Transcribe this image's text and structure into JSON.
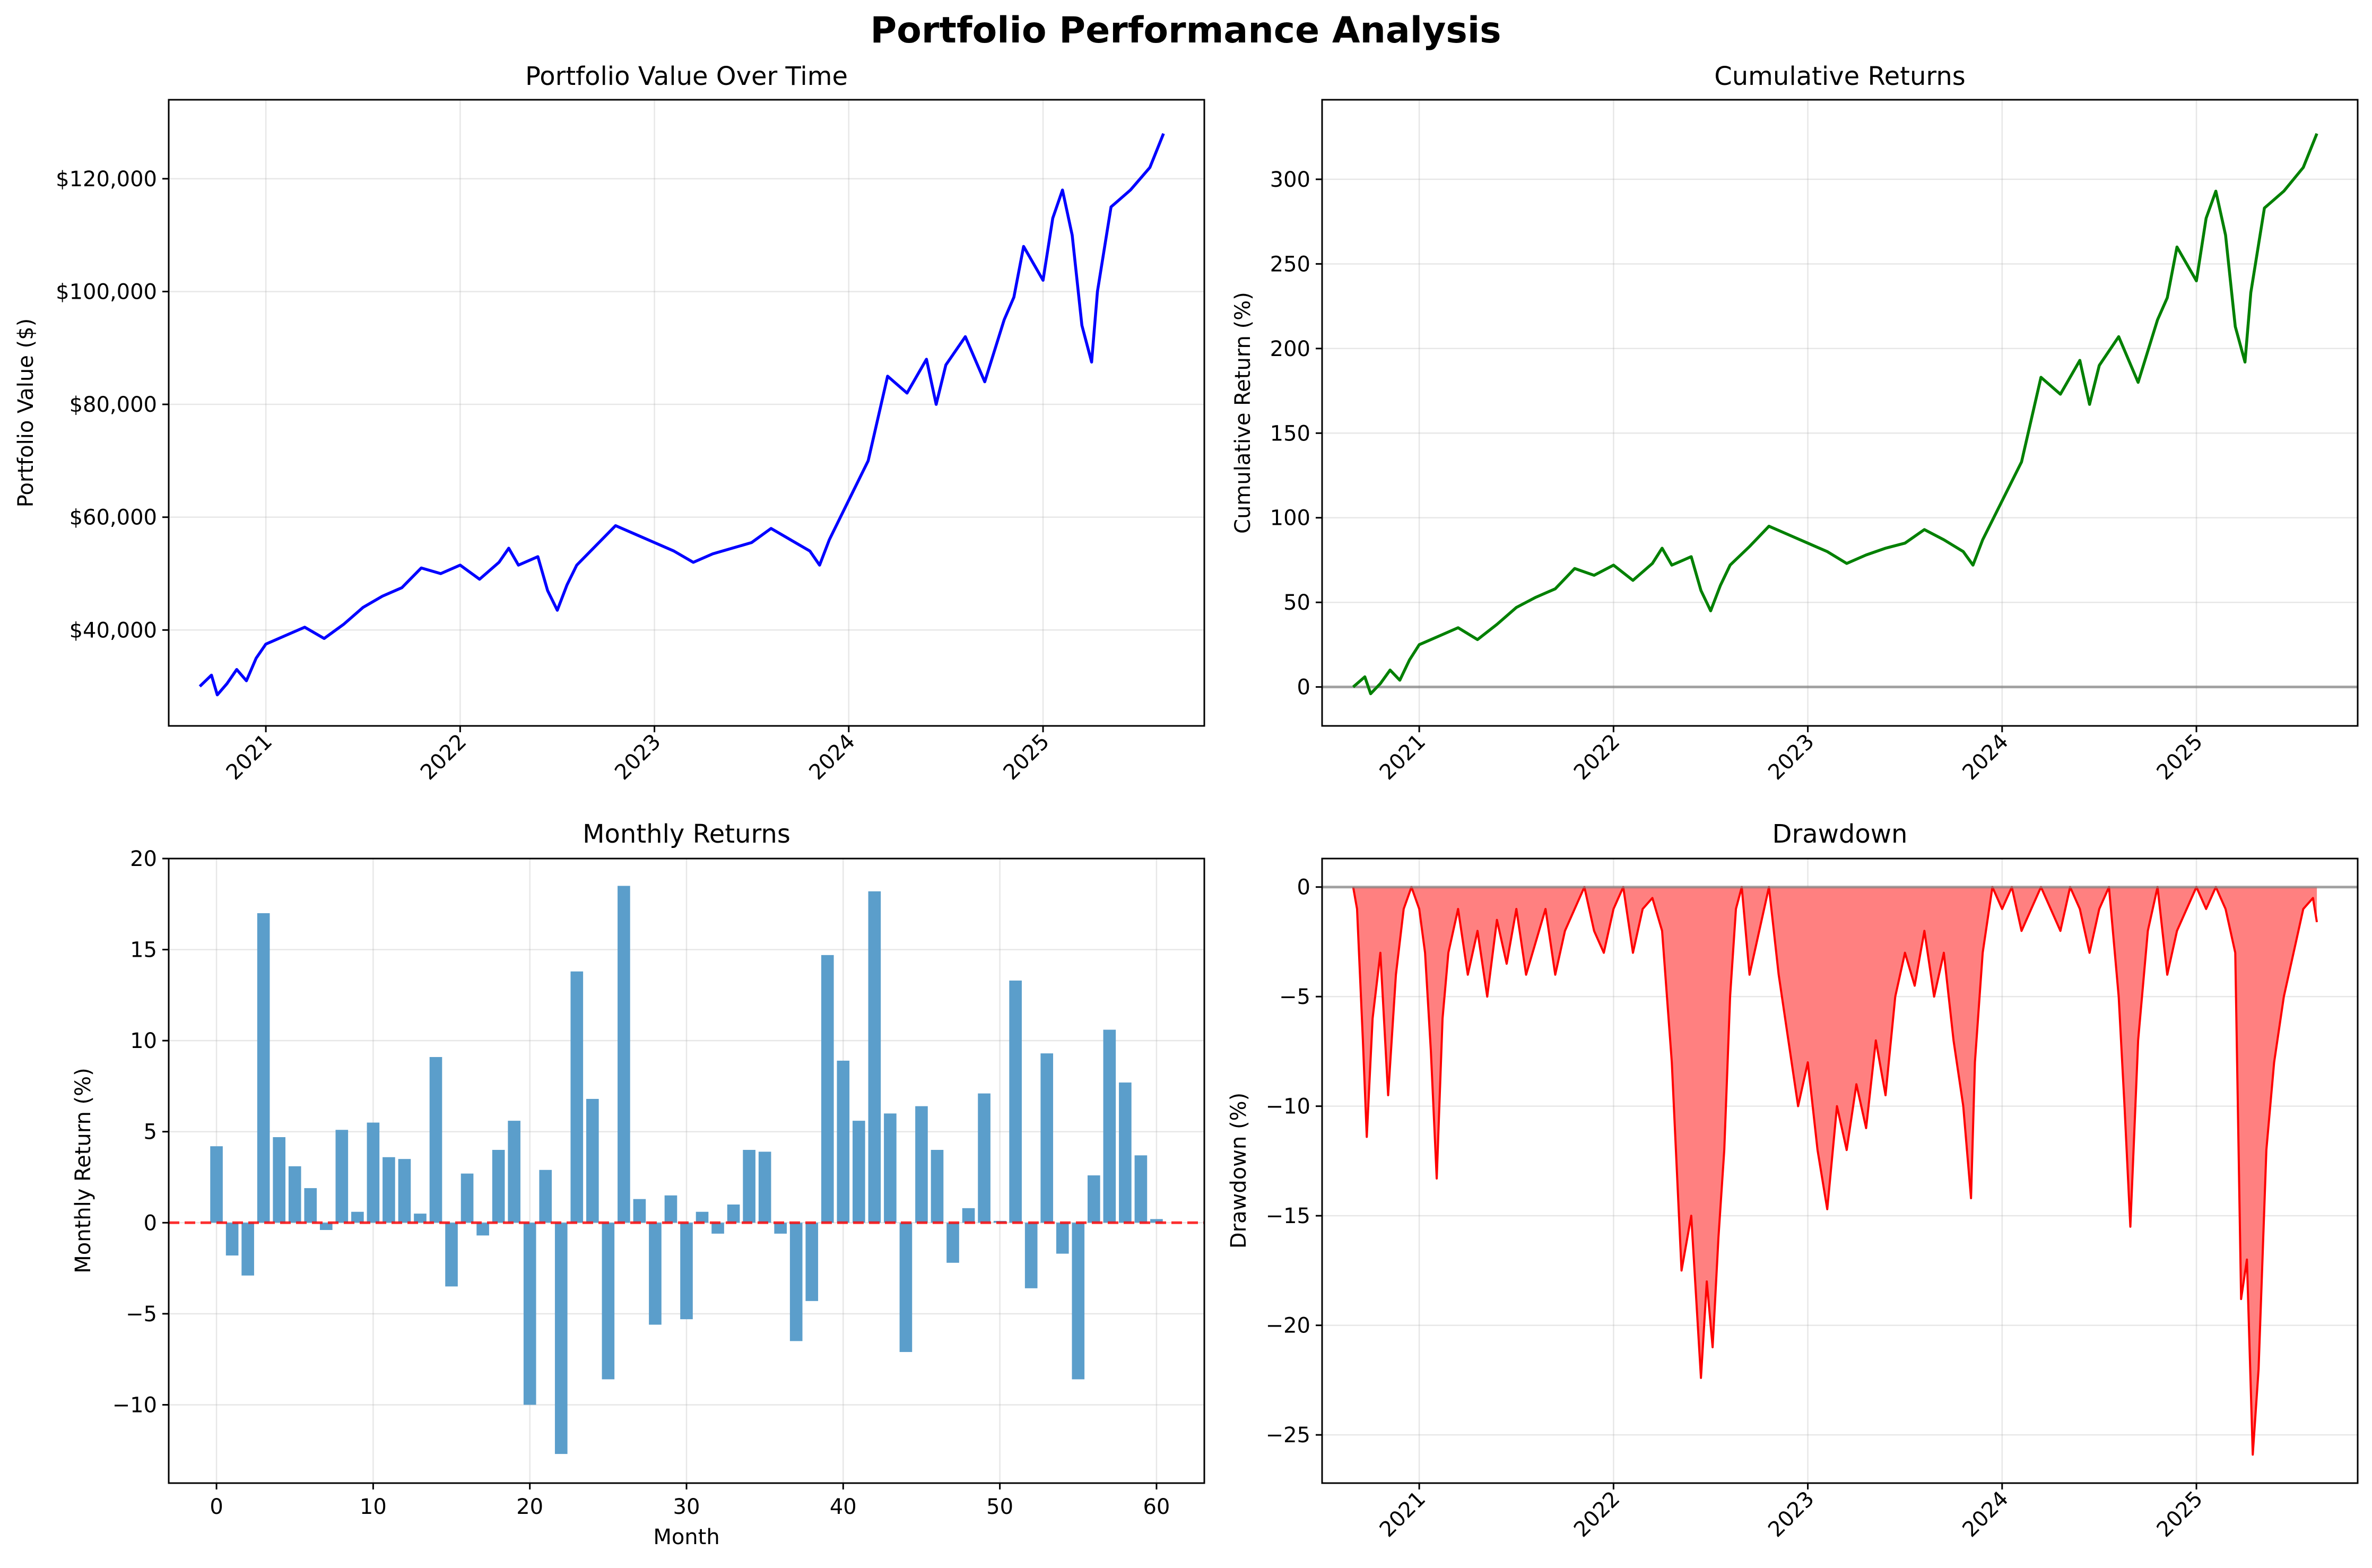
{
  "suptitle": "Portfolio Performance Analysis",
  "chart_data": [
    {
      "id": "value",
      "type": "line",
      "title": "Portfolio Value Over Time",
      "xlabel": "",
      "ylabel": "Portfolio Value ($)",
      "color": "#0000ff",
      "xlim": [
        2020.5,
        2025.83
      ],
      "ylim": [
        23000,
        134000
      ],
      "xticks": [
        2021,
        2022,
        2023,
        2024,
        2025
      ],
      "xtick_labels": [
        "2021",
        "2022",
        "2023",
        "2024",
        "2025"
      ],
      "yticks": [
        40000,
        60000,
        80000,
        100000,
        120000
      ],
      "ytick_labels": [
        "$40,000",
        "$60,000",
        "$80,000",
        "$100,000",
        "$120,000"
      ],
      "grid": true,
      "x": [
        2020.66,
        2020.72,
        2020.75,
        2020.8,
        2020.85,
        2020.9,
        2020.95,
        2021.0,
        2021.1,
        2021.2,
        2021.3,
        2021.4,
        2021.5,
        2021.6,
        2021.7,
        2021.8,
        2021.9,
        2022.0,
        2022.1,
        2022.2,
        2022.25,
        2022.3,
        2022.4,
        2022.45,
        2022.5,
        2022.55,
        2022.6,
        2022.7,
        2022.8,
        2022.9,
        2023.0,
        2023.1,
        2023.2,
        2023.3,
        2023.4,
        2023.5,
        2023.6,
        2023.7,
        2023.8,
        2023.85,
        2023.9,
        2024.0,
        2024.1,
        2024.2,
        2024.3,
        2024.4,
        2024.45,
        2024.5,
        2024.6,
        2024.7,
        2024.8,
        2024.85,
        2024.9,
        2025.0,
        2025.05,
        2025.1,
        2025.15,
        2025.2,
        2025.25,
        2025.28,
        2025.35,
        2025.45,
        2025.55,
        2025.62
      ],
      "y": [
        30000,
        32000,
        28500,
        30500,
        33000,
        31000,
        35000,
        37500,
        39000,
        40500,
        38500,
        41000,
        44000,
        46000,
        47500,
        51000,
        50000,
        51500,
        49000,
        52000,
        54500,
        51500,
        53000,
        47000,
        43500,
        48000,
        51500,
        55000,
        58500,
        57000,
        55500,
        54000,
        52000,
        53500,
        54500,
        55500,
        58000,
        56000,
        54000,
        51500,
        56000,
        63000,
        70000,
        85000,
        82000,
        88000,
        80000,
        87000,
        92000,
        84000,
        95000,
        99000,
        108000,
        102000,
        113000,
        118000,
        110000,
        94000,
        87500,
        100000,
        115000,
        118000,
        122000,
        128000
      ]
    },
    {
      "id": "cumret",
      "type": "line",
      "title": "Cumulative Returns",
      "xlabel": "",
      "ylabel": "Cumulative Return (%)",
      "color": "#008000",
      "baseline": 0,
      "baseline_color": "#808080",
      "xlim": [
        2020.5,
        2025.83
      ],
      "ylim": [
        -23,
        347
      ],
      "xticks": [
        2021,
        2022,
        2023,
        2024,
        2025
      ],
      "xtick_labels": [
        "2021",
        "2022",
        "2023",
        "2024",
        "2025"
      ],
      "yticks": [
        0,
        50,
        100,
        150,
        200,
        250,
        300
      ],
      "ytick_labels": [
        "0",
        "50",
        "100",
        "150",
        "200",
        "250",
        "300"
      ],
      "grid": true,
      "x": [
        2020.66,
        2020.72,
        2020.75,
        2020.8,
        2020.85,
        2020.9,
        2020.95,
        2021.0,
        2021.1,
        2021.2,
        2021.3,
        2021.4,
        2021.5,
        2021.6,
        2021.7,
        2021.8,
        2021.9,
        2022.0,
        2022.1,
        2022.2,
        2022.25,
        2022.3,
        2022.4,
        2022.45,
        2022.5,
        2022.55,
        2022.6,
        2022.7,
        2022.8,
        2022.9,
        2023.0,
        2023.1,
        2023.2,
        2023.3,
        2023.4,
        2023.5,
        2023.6,
        2023.7,
        2023.8,
        2023.85,
        2023.9,
        2024.0,
        2024.1,
        2024.2,
        2024.3,
        2024.4,
        2024.45,
        2024.5,
        2024.6,
        2024.7,
        2024.8,
        2024.85,
        2024.9,
        2025.0,
        2025.05,
        2025.1,
        2025.15,
        2025.2,
        2025.25,
        2025.28,
        2025.35,
        2025.45,
        2025.55,
        2025.62
      ],
      "y": [
        0,
        6,
        -4,
        2,
        10,
        4,
        16,
        25,
        30,
        35,
        28,
        37,
        47,
        53,
        58,
        70,
        66,
        72,
        63,
        73,
        82,
        72,
        77,
        57,
        45,
        60,
        72,
        83,
        95,
        90,
        85,
        80,
        73,
        78,
        82,
        85,
        93,
        87,
        80,
        72,
        87,
        110,
        133,
        183,
        173,
        193,
        167,
        190,
        207,
        180,
        217,
        230,
        260,
        240,
        277,
        293,
        267,
        213,
        192,
        233,
        283,
        293,
        307,
        327
      ]
    },
    {
      "id": "monthly",
      "type": "bar",
      "title": "Monthly Returns",
      "xlabel": "Month",
      "ylabel": "Monthly Return (%)",
      "color": "#5b9ecb",
      "baseline": 0,
      "baseline_color": "#ff0000",
      "xlim": [
        -3.05,
        63.05
      ],
      "ylim": [
        -14.3,
        20
      ],
      "xticks": [
        0,
        10,
        20,
        30,
        40,
        50,
        60
      ],
      "xtick_labels": [
        "0",
        "10",
        "20",
        "30",
        "40",
        "50",
        "60"
      ],
      "yticks": [
        -10,
        -5,
        0,
        5,
        10,
        15,
        20
      ],
      "ytick_labels": [
        "−10",
        "−5",
        "0",
        "5",
        "10",
        "15",
        "20"
      ],
      "grid": true,
      "categories": [
        0,
        1,
        2,
        3,
        4,
        5,
        6,
        7,
        8,
        9,
        10,
        11,
        12,
        13,
        14,
        15,
        16,
        17,
        18,
        19,
        20,
        21,
        22,
        23,
        24,
        25,
        26,
        27,
        28,
        29,
        30,
        31,
        32,
        33,
        34,
        35,
        36,
        37,
        38,
        39,
        40,
        41,
        42,
        43,
        44,
        45,
        46,
        47,
        48,
        49,
        50,
        51,
        52,
        53,
        54,
        55,
        56,
        57,
        58,
        59,
        60
      ],
      "values": [
        4.2,
        -1.8,
        -2.9,
        17.0,
        4.7,
        3.1,
        1.9,
        -0.4,
        5.1,
        0.6,
        5.5,
        3.6,
        3.5,
        0.5,
        9.1,
        -3.5,
        2.7,
        -0.7,
        4.0,
        5.6,
        -10.0,
        2.9,
        -12.7,
        13.8,
        6.8,
        -8.6,
        18.5,
        1.3,
        -5.6,
        1.5,
        -5.3,
        0.6,
        -0.6,
        1.0,
        4.0,
        3.9,
        -0.6,
        -6.5,
        -4.3,
        14.7,
        8.9,
        5.6,
        18.2,
        6.0,
        -7.1,
        6.4,
        4.0,
        -2.2,
        0.8,
        7.1,
        0.1,
        13.3,
        -3.6,
        9.3,
        -1.7,
        -8.6,
        2.6,
        10.6,
        7.7,
        3.7,
        0.2
      ]
    },
    {
      "id": "drawdown",
      "type": "area",
      "title": "Drawdown",
      "xlabel": "",
      "ylabel": "Drawdown (%)",
      "color": "#ff0000",
      "fill_color": "#ff8080",
      "baseline": 0,
      "baseline_color": "#808080",
      "xlim": [
        2020.5,
        2025.83
      ],
      "ylim": [
        -27.2,
        1.3
      ],
      "xticks": [
        2021,
        2022,
        2023,
        2024,
        2025
      ],
      "xtick_labels": [
        "2021",
        "2022",
        "2023",
        "2024",
        "2025"
      ],
      "yticks": [
        -25,
        -20,
        -15,
        -10,
        -5,
        0
      ],
      "ytick_labels": [
        "−25",
        "−20",
        "−15",
        "−10",
        "−5",
        "0"
      ],
      "grid": true,
      "x": [
        2020.66,
        2020.68,
        2020.71,
        2020.73,
        2020.76,
        2020.8,
        2020.84,
        2020.88,
        2020.92,
        2020.96,
        2021.0,
        2021.03,
        2021.06,
        2021.09,
        2021.12,
        2021.15,
        2021.2,
        2021.25,
        2021.3,
        2021.35,
        2021.4,
        2021.45,
        2021.5,
        2021.55,
        2021.6,
        2021.65,
        2021.7,
        2021.75,
        2021.8,
        2021.85,
        2021.9,
        2021.95,
        2022.0,
        2022.05,
        2022.1,
        2022.15,
        2022.2,
        2022.25,
        2022.3,
        2022.35,
        2022.4,
        2022.45,
        2022.48,
        2022.51,
        2022.54,
        2022.57,
        2022.6,
        2022.63,
        2022.66,
        2022.7,
        2022.75,
        2022.8,
        2022.85,
        2022.9,
        2022.95,
        2023.0,
        2023.05,
        2023.1,
        2023.15,
        2023.2,
        2023.25,
        2023.3,
        2023.35,
        2023.4,
        2023.45,
        2023.5,
        2023.55,
        2023.6,
        2023.65,
        2023.7,
        2023.75,
        2023.8,
        2023.84,
        2023.86,
        2023.9,
        2023.95,
        2024.0,
        2024.05,
        2024.1,
        2024.15,
        2024.2,
        2024.25,
        2024.3,
        2024.35,
        2024.4,
        2024.45,
        2024.5,
        2024.55,
        2024.6,
        2024.63,
        2024.66,
        2024.7,
        2024.75,
        2024.8,
        2024.85,
        2024.9,
        2024.95,
        2025.0,
        2025.05,
        2025.1,
        2025.15,
        2025.2,
        2025.23,
        2025.26,
        2025.29,
        2025.32,
        2025.36,
        2025.4,
        2025.45,
        2025.5,
        2025.55,
        2025.6,
        2025.62
      ],
      "y": [
        0,
        -1.0,
        -7.0,
        -11.4,
        -6.0,
        -3.0,
        -9.5,
        -4.0,
        -1.0,
        0,
        -1.0,
        -3.0,
        -7.5,
        -13.3,
        -6.0,
        -3.0,
        -1.0,
        -4.0,
        -2.0,
        -5.0,
        -1.5,
        -3.5,
        -1.0,
        -4.0,
        -2.5,
        -1.0,
        -4.0,
        -2.0,
        -1.0,
        0,
        -2.0,
        -3.0,
        -1.0,
        0,
        -3.0,
        -1.0,
        -0.5,
        -2.0,
        -8.0,
        -17.5,
        -15.0,
        -22.4,
        -18.0,
        -21.0,
        -16.0,
        -12.0,
        -5.0,
        -1.0,
        0,
        -4.0,
        -2.0,
        0,
        -4.0,
        -7.0,
        -10.0,
        -8.0,
        -12.0,
        -14.7,
        -10.0,
        -12.0,
        -9.0,
        -11.0,
        -7.0,
        -9.5,
        -5.0,
        -3.0,
        -4.5,
        -2.0,
        -5.0,
        -3.0,
        -7.0,
        -10.0,
        -14.2,
        -8.0,
        -3.0,
        0,
        -1.0,
        0,
        -2.0,
        -1.0,
        0,
        -1.0,
        -2.0,
        0,
        -1.0,
        -3.0,
        -1.0,
        0,
        -5.0,
        -10.0,
        -15.5,
        -7.0,
        -2.0,
        0,
        -4.0,
        -2.0,
        -1.0,
        0,
        -1.0,
        0,
        -1.0,
        -3.0,
        -18.8,
        -17.0,
        -25.9,
        -22.0,
        -12.0,
        -8.0,
        -5.0,
        -3.0,
        -1.0,
        -0.5,
        -1.6
      ]
    }
  ]
}
